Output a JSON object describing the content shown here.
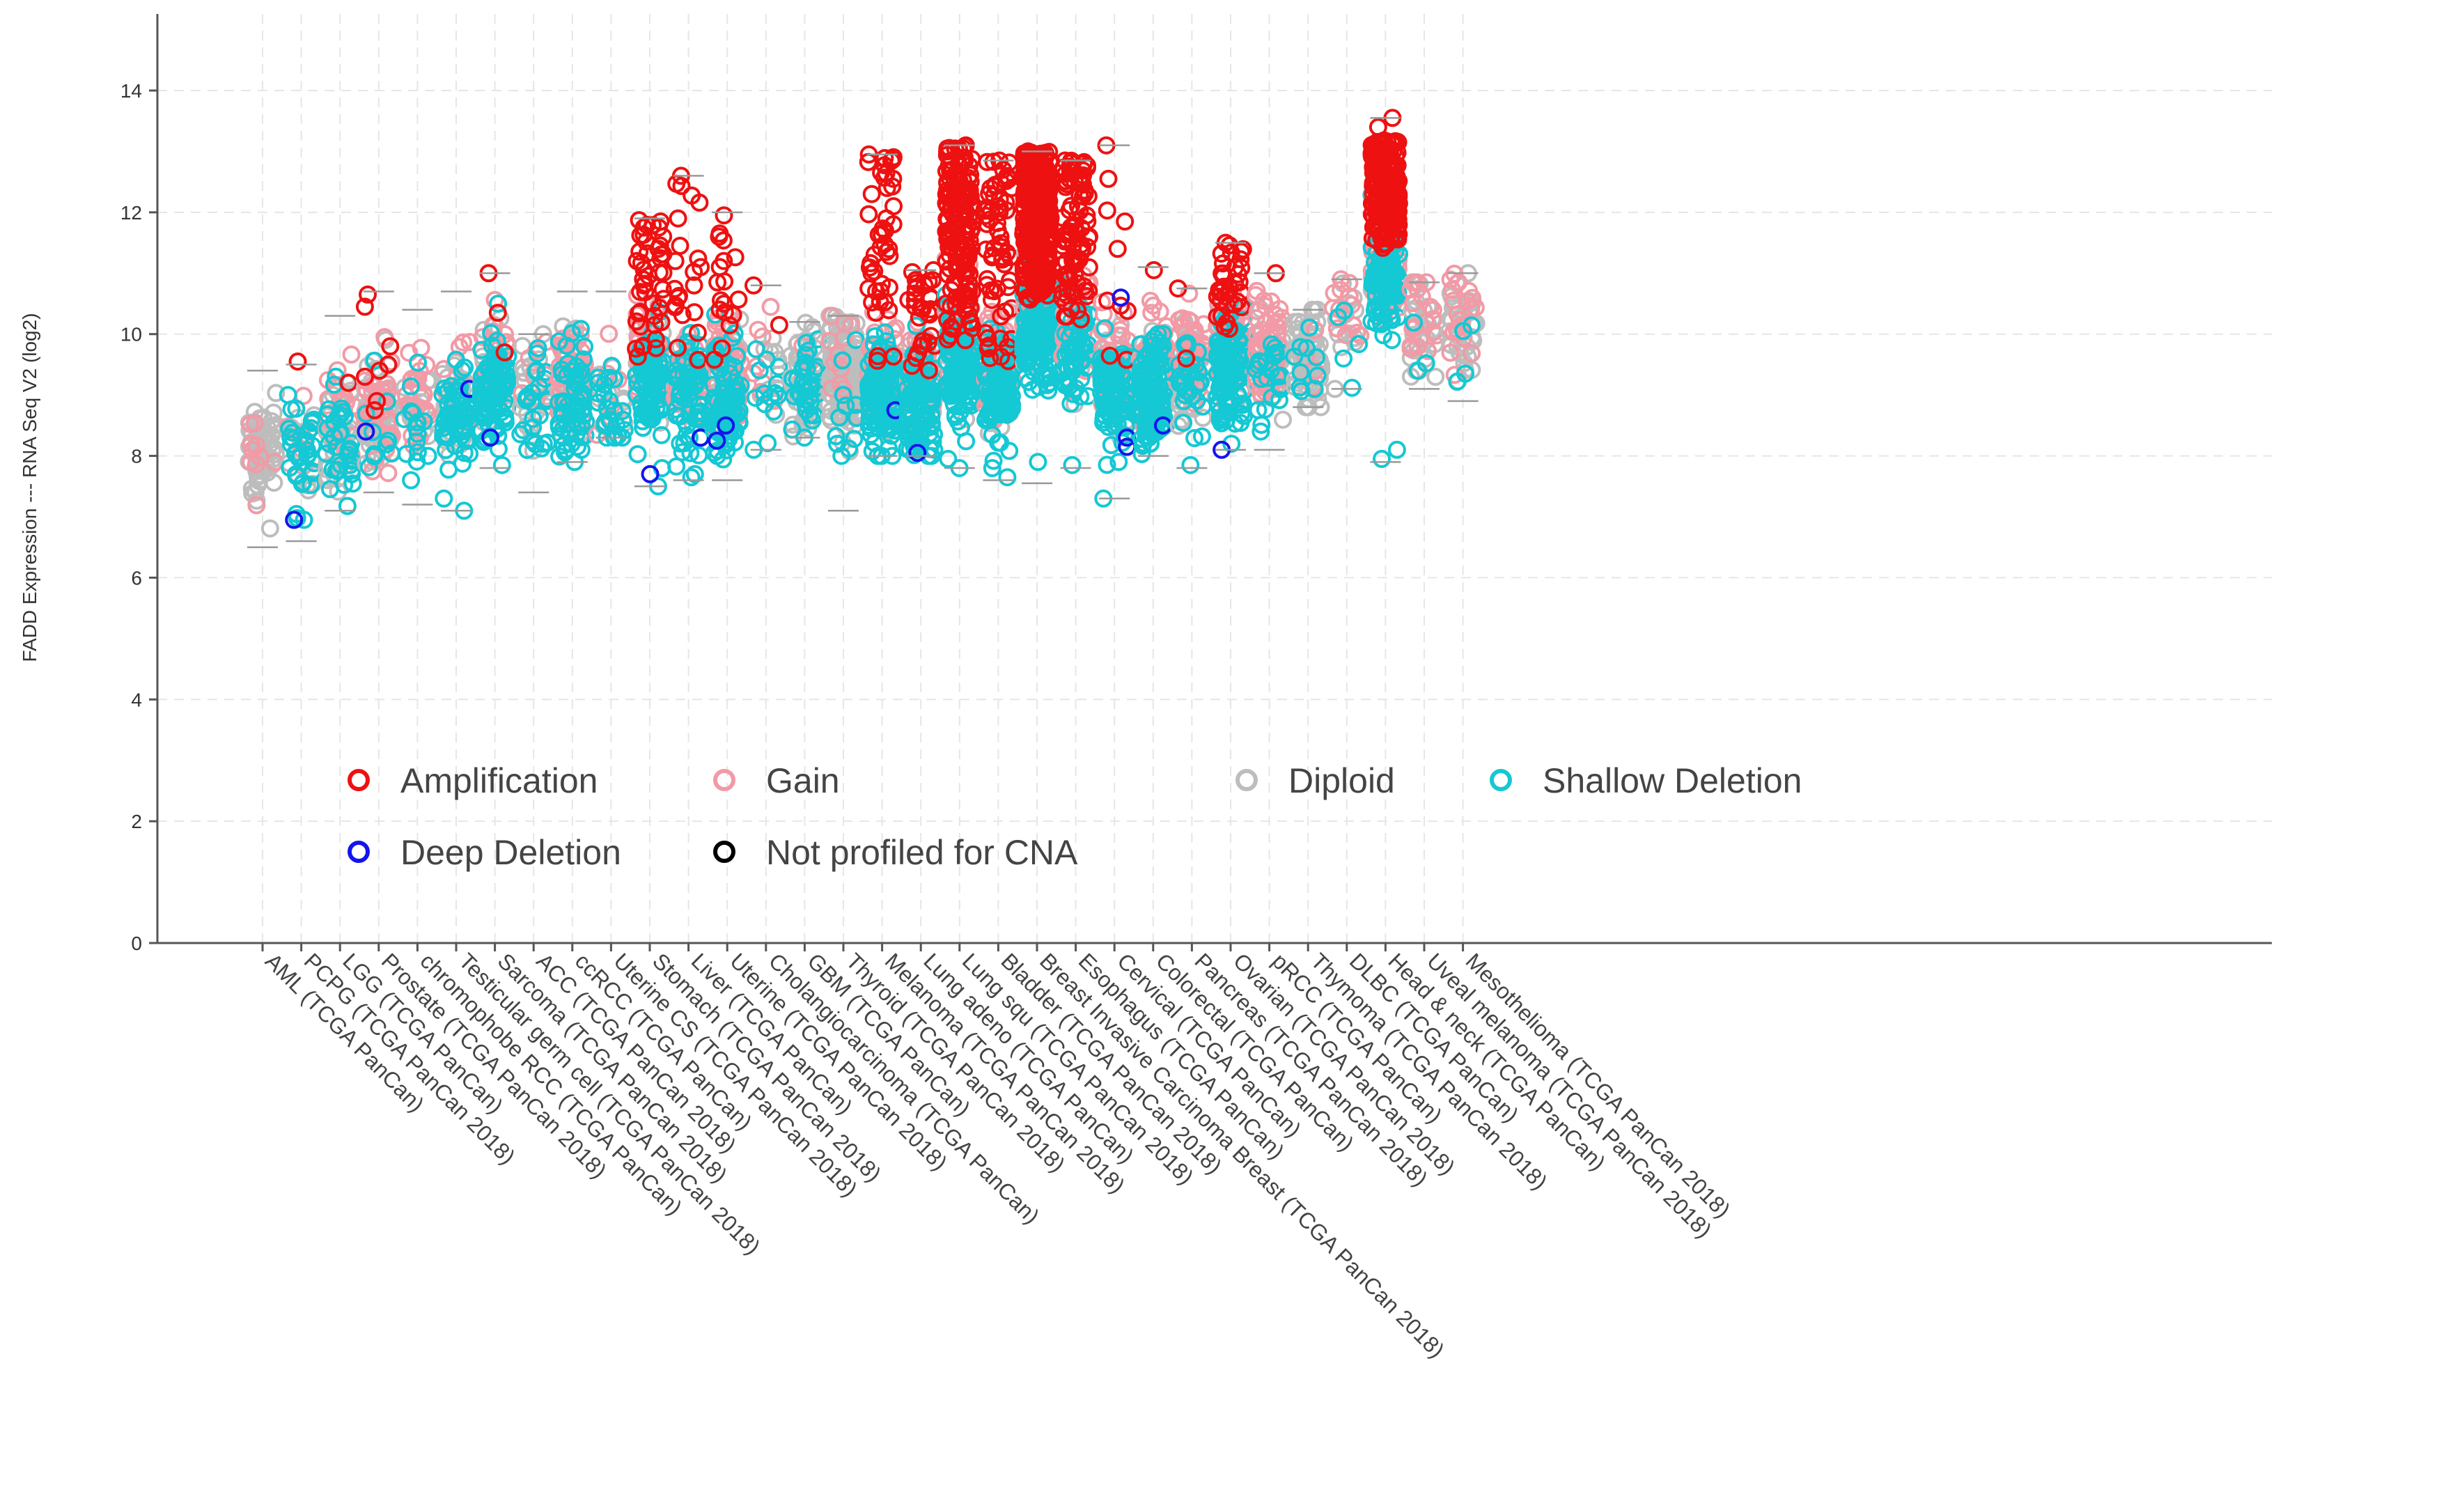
{
  "chart_data": {
    "type": "scatter",
    "title": "",
    "xlabel": "",
    "ylabel": "FADD Expression --- RNA Seq V2 (log2)",
    "ylim": [
      0,
      15
    ],
    "yticks": [
      0,
      2,
      4,
      6,
      8,
      10,
      12,
      14
    ],
    "grid": true,
    "legend_placement": "lower-left",
    "legend": [
      {
        "key": "amp",
        "label": "Amplification",
        "color": "#ee1111"
      },
      {
        "key": "gain",
        "label": "Gain",
        "color": "#f29aa6"
      },
      {
        "key": "diploid",
        "label": "Diploid",
        "color": "#bdbdbd"
      },
      {
        "key": "shallow",
        "label": "Shallow Deletion",
        "color": "#14c8d4"
      },
      {
        "key": "deep",
        "label": "Deep Deletion",
        "color": "#1414ee"
      },
      {
        "key": "np",
        "label": "Not profiled for CNA",
        "color": "#000000"
      }
    ],
    "categories": [
      "AML (TCGA PanCan)",
      "PCPG (TCGA PanCan 2018)",
      "LGG (TCGA PanCan)",
      "Prostate (TCGA PanCan 2018)",
      "chromophobe RCC (TCGA PanCan)",
      "Testicular germ cell (TCGA PanCan 2018)",
      "Sarcoma (TCGA PanCan 2018)",
      "ACC (TCGA PanCan 2018)",
      "ccRCC (TCGA PanCan)",
      "Uterine CS (TCGA PanCan 2018)",
      "Stomach (TCGA PanCan 2018)",
      "Liver (TCGA PanCan)",
      "Uterine (TCGA PanCan 2018)",
      "Cholangiocarcinoma (TCGA PanCan)",
      "GBM (TCGA PanCan)",
      "Thyroid (TCGA PanCan 2018)",
      "Melanoma (TCGA PanCan 2018)",
      "Lung adeno (TCGA PanCan)",
      "Lung squ (TCGA PanCan 2018)",
      "Bladder (TCGA PanCan 2018)",
      "Breast Invasive Carcinoma Breast (TCGA PanCan 2018)",
      "Esophagus (TCGA PanCan)",
      "Cervical (TCGA PanCan)",
      "Colorectal (TCGA PanCan)",
      "Pancreas (TCGA PanCan 2018)",
      "Ovarian (TCGA PanCan 2018)",
      "pRCC (TCGA PanCan)",
      "Thymoma (TCGA PanCan 2018)",
      "DLBC (TCGA PanCan)",
      "Head & neck (TCGA PanCan)",
      "Uveal melanoma (TCGA PanCan 2018)",
      "Mesothelioma (TCGA PanCan 2018)"
    ],
    "series": [
      {
        "category": "AML (TCGA PanCan)",
        "median": 8.0,
        "min": 6.5,
        "max": 9.4,
        "counts": {
          "amp": 0,
          "gain": 10,
          "diploid": 70,
          "shallow": 0,
          "deep": 0
        },
        "extremes": {
          "amp": [],
          "deep": [],
          "shallow": []
        }
      },
      {
        "category": "PCPG (TCGA PanCan 2018)",
        "median": 8.1,
        "min": 6.6,
        "max": 9.5,
        "counts": {
          "amp": 1,
          "gain": 6,
          "diploid": 14,
          "shallow": 35,
          "deep": 1
        },
        "extremes": {
          "amp": [
            9.55
          ],
          "deep": [
            6.95
          ],
          "shallow": [
            6.95,
            9.0
          ]
        }
      },
      {
        "category": "LGG (TCGA PanCan)",
        "median": 8.4,
        "min": 7.1,
        "max": 10.3,
        "counts": {
          "amp": 1,
          "gain": 20,
          "diploid": 45,
          "shallow": 35,
          "deep": 0
        },
        "extremes": {
          "amp": [
            9.2
          ],
          "deep": [],
          "shallow": [
            7.7,
            9.3
          ]
        }
      },
      {
        "category": "Prostate (TCGA PanCan 2018)",
        "median": 8.6,
        "min": 7.4,
        "max": 10.7,
        "counts": {
          "amp": 8,
          "gain": 35,
          "diploid": 55,
          "shallow": 10,
          "deep": 1
        },
        "extremes": {
          "amp": [
            10.65,
            10.45,
            9.8,
            9.5,
            9.4,
            9.3,
            8.9,
            8.75
          ],
          "deep": [
            8.4
          ],
          "shallow": []
        }
      },
      {
        "category": "chromophobe RCC (TCGA PanCan)",
        "median": 8.7,
        "min": 7.2,
        "max": 10.4,
        "counts": {
          "amp": 0,
          "gain": 22,
          "diploid": 15,
          "shallow": 15,
          "deep": 0
        },
        "extremes": {
          "amp": [],
          "deep": [],
          "shallow": [
            7.6,
            8.0
          ]
        }
      },
      {
        "category": "Testicular germ cell (TCGA PanCan 2018)",
        "median": 8.8,
        "min": 7.1,
        "max": 10.7,
        "counts": {
          "amp": 0,
          "gain": 10,
          "diploid": 30,
          "shallow": 60,
          "deep": 1
        },
        "extremes": {
          "amp": [],
          "deep": [
            9.1
          ],
          "shallow": [
            7.1,
            7.3
          ]
        }
      },
      {
        "category": "Sarcoma (TCGA PanCan 2018)",
        "median": 9.2,
        "min": 7.8,
        "max": 11.0,
        "counts": {
          "amp": 3,
          "gain": 30,
          "diploid": 25,
          "shallow": 95,
          "deep": 1
        },
        "extremes": {
          "amp": [
            11.0,
            10.35,
            9.7
          ],
          "deep": [
            8.3
          ],
          "shallow": [
            7.85,
            10.5
          ]
        }
      },
      {
        "category": "ACC (TCGA PanCan 2018)",
        "median": 9.1,
        "min": 7.4,
        "max": 10.0,
        "counts": {
          "amp": 0,
          "gain": 8,
          "diploid": 25,
          "shallow": 25,
          "deep": 0
        },
        "extremes": {
          "amp": [],
          "deep": [],
          "shallow": [
            8.2
          ]
        }
      },
      {
        "category": "ccRCC (TCGA PanCan)",
        "median": 9.1,
        "min": 7.9,
        "max": 10.7,
        "counts": {
          "amp": 0,
          "gain": 55,
          "diploid": 40,
          "shallow": 60,
          "deep": 0
        },
        "extremes": {
          "amp": [],
          "deep": [],
          "shallow": [
            8.1
          ]
        }
      },
      {
        "category": "Uterine CS (TCGA PanCan 2018)",
        "median": 9.0,
        "min": 8.3,
        "max": 10.7,
        "counts": {
          "amp": 0,
          "gain": 8,
          "diploid": 15,
          "shallow": 25,
          "deep": 0
        },
        "extremes": {
          "amp": [],
          "deep": [],
          "shallow": [
            8.5
          ]
        }
      },
      {
        "category": "Stomach (TCGA PanCan 2018)",
        "median": 9.4,
        "min": 7.5,
        "max": 11.9,
        "counts": {
          "amp": 45,
          "gain": 45,
          "diploid": 30,
          "shallow": 90,
          "deep": 1
        },
        "extremes": {
          "amp": [
            11.85,
            11.75,
            11.6,
            11.4,
            11.2,
            10.9
          ],
          "deep": [
            7.7
          ],
          "shallow": [
            7.5,
            7.8
          ]
        }
      },
      {
        "category": "Liver (TCGA PanCan)",
        "median": 9.2,
        "min": 7.6,
        "max": 12.6,
        "counts": {
          "amp": 22,
          "gain": 30,
          "diploid": 25,
          "shallow": 70,
          "deep": 1
        },
        "extremes": {
          "amp": [
            12.6,
            11.9,
            11.45,
            11.1,
            10.8
          ],
          "deep": [
            8.3
          ],
          "shallow": [
            7.65,
            7.7
          ]
        }
      },
      {
        "category": "Uterine (TCGA PanCan 2018)",
        "median": 9.2,
        "min": 7.6,
        "max": 12.0,
        "counts": {
          "amp": 18,
          "gain": 45,
          "diploid": 45,
          "shallow": 85,
          "deep": 2
        },
        "extremes": {
          "amp": [
            11.95,
            11.6,
            10.85,
            10.5
          ],
          "deep": [
            8.25,
            8.5
          ],
          "shallow": [
            8.05
          ]
        }
      },
      {
        "category": "Cholangiocarcinoma (TCGA PanCan)",
        "median": 9.3,
        "min": 8.1,
        "max": 10.8,
        "counts": {
          "amp": 2,
          "gain": 8,
          "diploid": 10,
          "shallow": 14,
          "deep": 0
        },
        "extremes": {
          "amp": [
            10.8,
            10.15
          ],
          "deep": [],
          "shallow": [
            8.1
          ]
        }
      },
      {
        "category": "GBM (TCGA PanCan)",
        "median": 9.3,
        "min": 8.3,
        "max": 10.2,
        "counts": {
          "amp": 0,
          "gain": 4,
          "diploid": 60,
          "shallow": 35,
          "deep": 0
        },
        "extremes": {
          "amp": [],
          "deep": [],
          "shallow": [
            8.3
          ]
        }
      },
      {
        "category": "Thyroid (TCGA PanCan 2018)",
        "median": 9.3,
        "min": 7.1,
        "max": 10.3,
        "counts": {
          "amp": 0,
          "gain": 12,
          "diploid": 150,
          "shallow": 12,
          "deep": 0
        },
        "extremes": {
          "amp": [],
          "deep": [],
          "shallow": [
            8.0
          ]
        }
      },
      {
        "category": "Melanoma (TCGA PanCan 2018)",
        "median": 9.2,
        "min": 8.0,
        "max": 12.95,
        "counts": {
          "amp": 45,
          "gain": 50,
          "diploid": 30,
          "shallow": 120,
          "deep": 1
        },
        "extremes": {
          "amp": [
            12.95,
            12.4,
            12.3,
            12.1,
            11.9,
            11.7
          ],
          "deep": [
            8.75
          ],
          "shallow": [
            8.0
          ]
        }
      },
      {
        "category": "Lung adeno (TCGA PanCan)",
        "median": 9.1,
        "min": 8.0,
        "max": 11.05,
        "counts": {
          "amp": 30,
          "gain": 45,
          "diploid": 35,
          "shallow": 110,
          "deep": 1
        },
        "extremes": {
          "amp": [
            11.05,
            10.75
          ],
          "deep": [
            8.05
          ],
          "shallow": [
            8.1
          ]
        }
      },
      {
        "category": "Lung squ (TCGA PanCan 2018)",
        "median": 9.7,
        "min": 7.8,
        "max": 13.1,
        "counts": {
          "amp": 160,
          "gain": 40,
          "diploid": 20,
          "shallow": 120,
          "deep": 0
        },
        "extremes": {
          "amp": [
            13.1,
            13.05,
            12.9,
            12.85
          ],
          "deep": [],
          "shallow": [
            7.8,
            7.95
          ]
        }
      },
      {
        "category": "Bladder (TCGA PanCan 2018)",
        "median": 9.3,
        "min": 7.6,
        "max": 12.85,
        "counts": {
          "amp": 65,
          "gain": 55,
          "diploid": 35,
          "shallow": 120,
          "deep": 0
        },
        "extremes": {
          "amp": [
            12.85,
            12.7,
            12.4,
            12.0
          ],
          "deep": [],
          "shallow": [
            7.65,
            7.8
          ]
        }
      },
      {
        "category": "Breast Invasive Carcinoma Breast (TCGA PanCan 2018)",
        "median": 10.3,
        "min": 7.55,
        "max": 13.0,
        "counts": {
          "amp": 320,
          "gain": 80,
          "diploid": 40,
          "shallow": 160,
          "deep": 0
        },
        "extremes": {
          "amp": [
            13.0,
            12.8
          ],
          "deep": [],
          "shallow": [
            7.9
          ]
        }
      },
      {
        "category": "Esophagus (TCGA PanCan)",
        "median": 9.9,
        "min": 7.8,
        "max": 12.85,
        "counts": {
          "amp": 90,
          "gain": 40,
          "diploid": 20,
          "shallow": 60,
          "deep": 0
        },
        "extremes": {
          "amp": [
            12.85,
            12.75
          ],
          "deep": [],
          "shallow": [
            7.85
          ]
        }
      },
      {
        "category": "Cervical (TCGA PanCan)",
        "median": 9.3,
        "min": 7.3,
        "max": 13.1,
        "counts": {
          "amp": 10,
          "gain": 40,
          "diploid": 25,
          "shallow": 90,
          "deep": 3
        },
        "extremes": {
          "amp": [
            13.1,
            12.55,
            11.85,
            11.4,
            10.55
          ],
          "deep": [
            10.6,
            8.3,
            8.15
          ],
          "shallow": [
            7.3,
            7.9
          ]
        }
      },
      {
        "category": "Colorectal (TCGA PanCan)",
        "median": 9.3,
        "min": 8.0,
        "max": 11.1,
        "counts": {
          "amp": 1,
          "gain": 60,
          "diploid": 30,
          "shallow": 120,
          "deep": 1
        },
        "extremes": {
          "amp": [
            11.05
          ],
          "deep": [
            8.5
          ],
          "shallow": [
            8.2
          ]
        }
      },
      {
        "category": "Pancreas (TCGA PanCan 2018)",
        "median": 9.3,
        "min": 7.8,
        "max": 10.75,
        "counts": {
          "amp": 2,
          "gain": 40,
          "diploid": 45,
          "shallow": 30,
          "deep": 0
        },
        "extremes": {
          "amp": [
            10.75,
            9.6
          ],
          "deep": [],
          "shallow": [
            7.85
          ]
        }
      },
      {
        "category": "Ovarian (TCGA PanCan 2018)",
        "median": 9.6,
        "min": 8.1,
        "max": 11.5,
        "counts": {
          "amp": 35,
          "gain": 60,
          "diploid": 20,
          "shallow": 120,
          "deep": 1
        },
        "extremes": {
          "amp": [
            11.5,
            11.1
          ],
          "deep": [
            8.1
          ],
          "shallow": [
            8.2
          ]
        }
      },
      {
        "category": "pRCC (TCGA PanCan)",
        "median": 9.5,
        "min": 8.1,
        "max": 11.0,
        "counts": {
          "amp": 1,
          "gain": 55,
          "diploid": 40,
          "shallow": 25,
          "deep": 0
        },
        "extremes": {
          "amp": [
            11.0
          ],
          "deep": [],
          "shallow": [
            8.4
          ]
        }
      },
      {
        "category": "Thymoma (TCGA PanCan 2018)",
        "median": 9.6,
        "min": 8.8,
        "max": 10.4,
        "counts": {
          "amp": 0,
          "gain": 4,
          "diploid": 65,
          "shallow": 10,
          "deep": 0
        },
        "extremes": {
          "amp": [],
          "deep": [],
          "shallow": [
            9.1
          ]
        }
      },
      {
        "category": "DLBC (TCGA PanCan)",
        "median": 10.0,
        "min": 9.1,
        "max": 10.9,
        "counts": {
          "amp": 0,
          "gain": 14,
          "diploid": 12,
          "shallow": 5,
          "deep": 0
        },
        "extremes": {
          "amp": [],
          "deep": [],
          "shallow": [
            9.6
          ]
        }
      },
      {
        "category": "Head & neck (TCGA PanCan)",
        "median": 11.2,
        "min": 7.9,
        "max": 13.55,
        "counts": {
          "amp": 200,
          "gain": 50,
          "diploid": 30,
          "shallow": 110,
          "deep": 0
        },
        "extremes": {
          "amp": [
            13.55,
            13.4
          ],
          "deep": [],
          "shallow": [
            7.95,
            8.1
          ]
        }
      },
      {
        "category": "Uveal melanoma (TCGA PanCan 2018)",
        "median": 10.0,
        "min": 9.1,
        "max": 10.85,
        "counts": {
          "amp": 0,
          "gain": 20,
          "diploid": 30,
          "shallow": 3,
          "deep": 0
        },
        "extremes": {
          "amp": [],
          "deep": [],
          "shallow": [
            9.4
          ]
        }
      },
      {
        "category": "Mesothelioma (TCGA PanCan 2018)",
        "median": 10.1,
        "min": 8.9,
        "max": 11.0,
        "counts": {
          "amp": 0,
          "gain": 20,
          "diploid": 35,
          "shallow": 4,
          "deep": 0
        },
        "extremes": {
          "amp": [],
          "deep": [],
          "shallow": [
            9.35,
            10.05
          ]
        }
      }
    ]
  }
}
